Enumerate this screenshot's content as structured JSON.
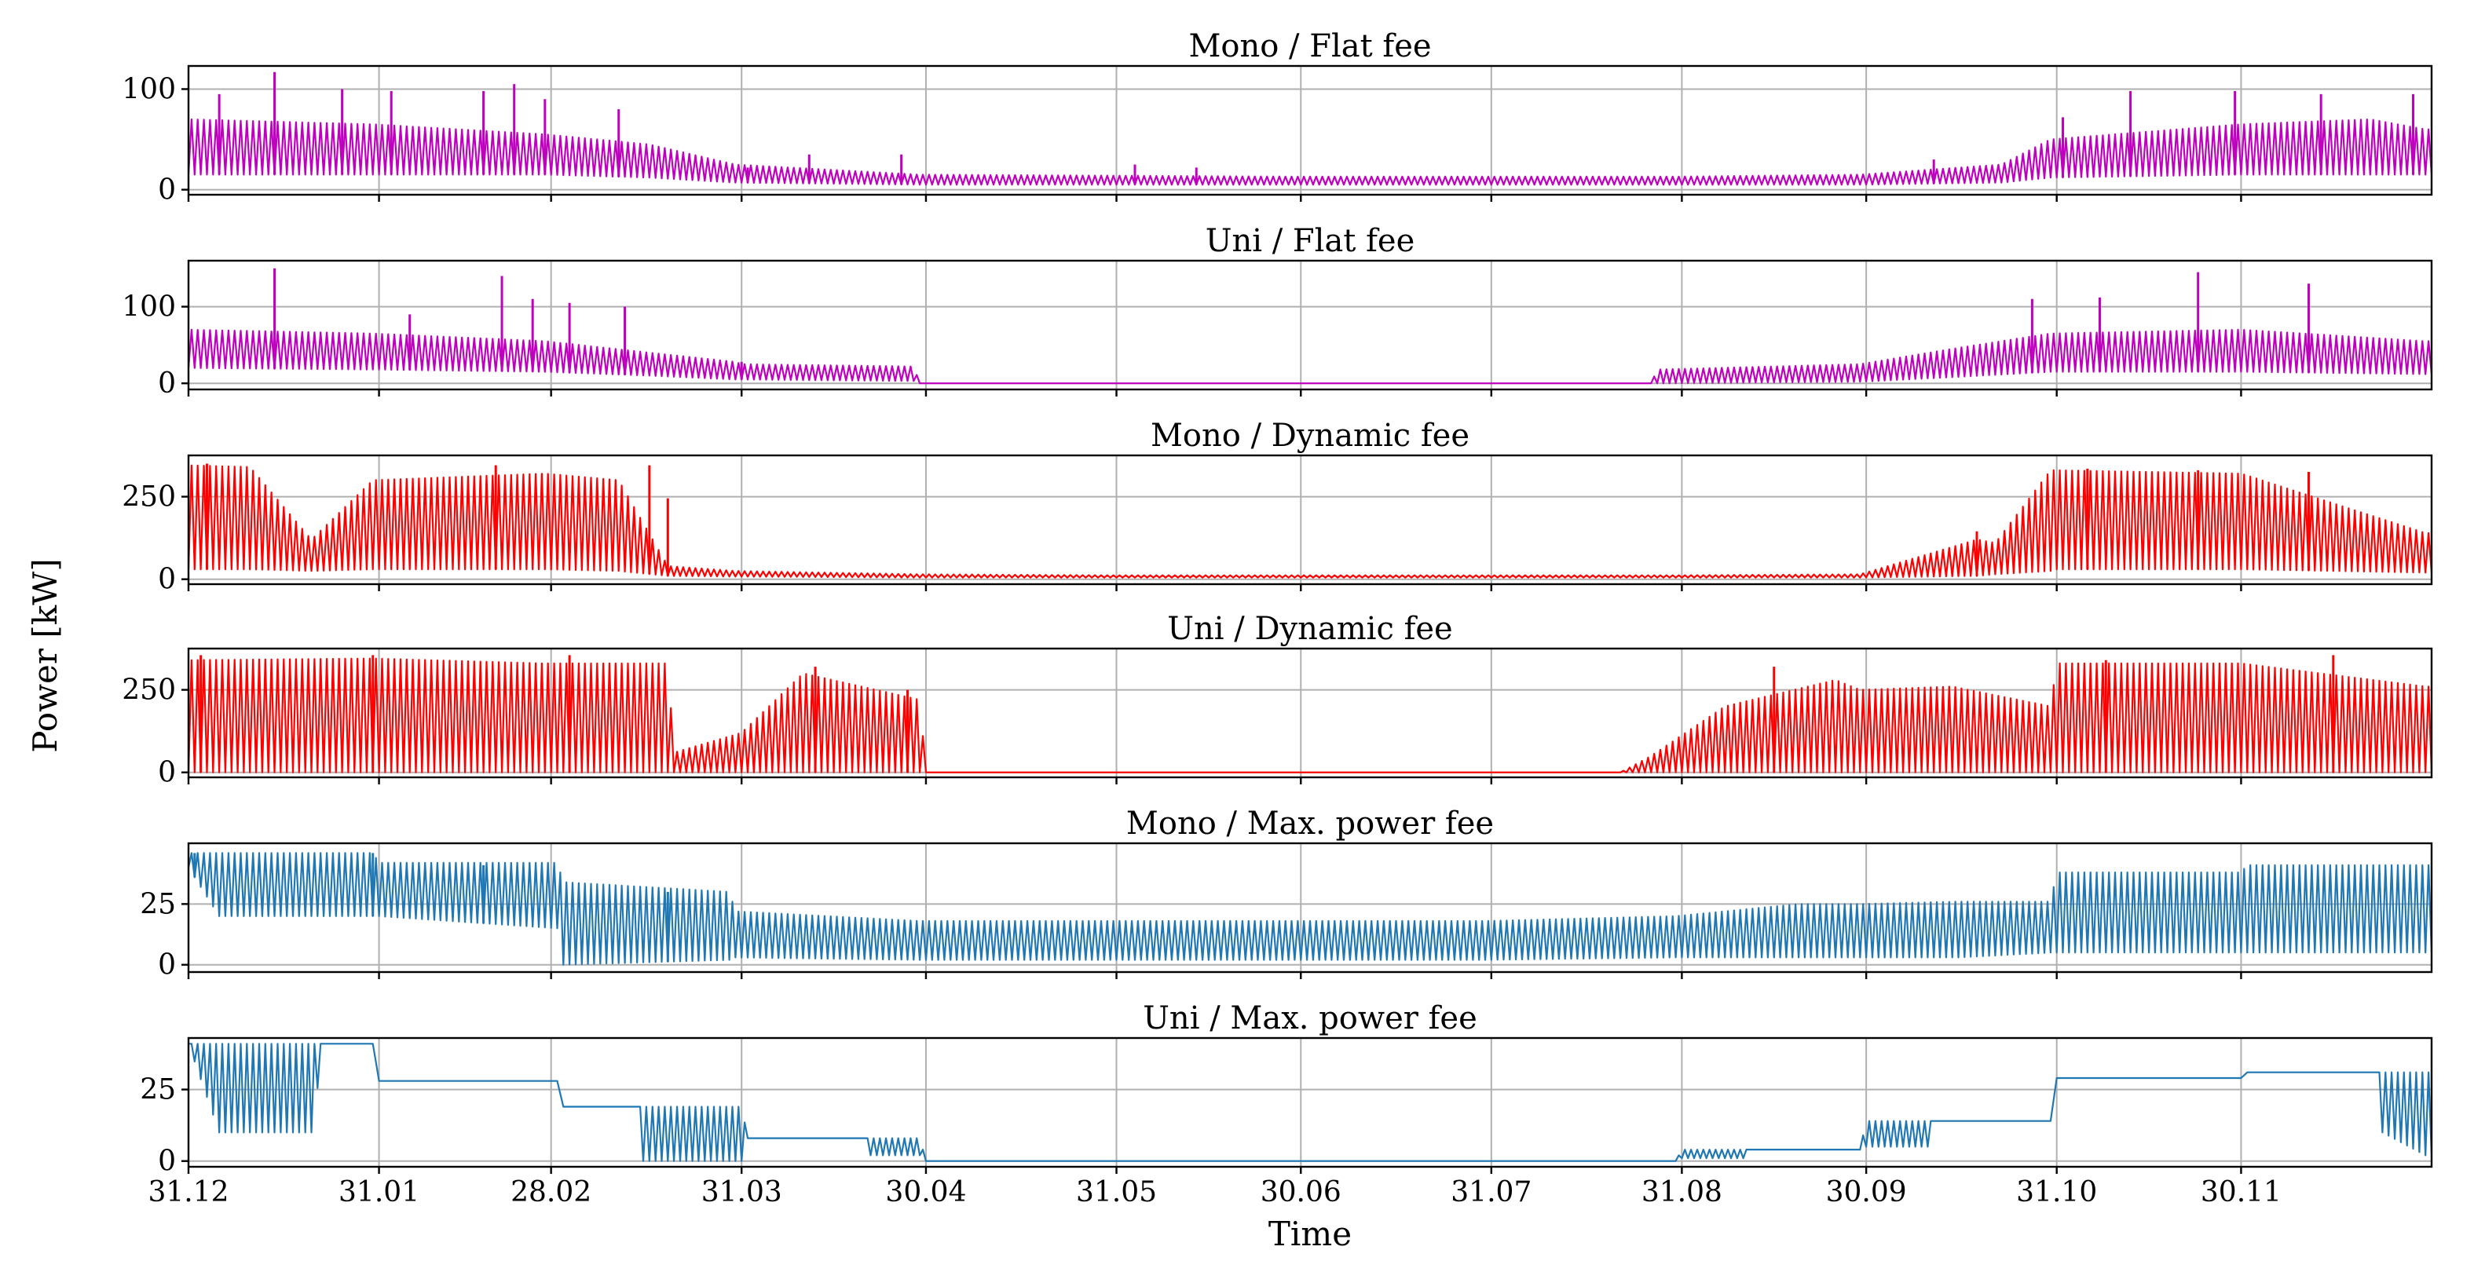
{
  "chart_data": [
    {
      "type": "line",
      "title": "Mono / Flat fee",
      "color": "#bf00bf",
      "yticks": [
        0,
        100
      ],
      "ylim": [
        -5,
        123
      ],
      "xlim": [
        0,
        365
      ],
      "series": [
        {
          "name": "Mono / Flat fee",
          "x": [
            0,
            30,
            58,
            75,
            89,
            119,
            150,
            180,
            211,
            242,
            272,
            295,
            303,
            334,
            355,
            364
          ],
          "base": [
            15,
            15,
            15,
            12,
            7,
            5,
            5,
            5,
            5,
            5,
            5,
            7,
            12,
            15,
            15,
            15
          ],
          "peak": [
            70,
            65,
            55,
            45,
            25,
            15,
            14,
            13,
            13,
            13,
            15,
            25,
            50,
            65,
            70,
            60
          ],
          "spikes": [
            [
              5,
              95
            ],
            [
              14,
              117
            ],
            [
              25,
              100
            ],
            [
              33,
              98
            ],
            [
              48,
              98
            ],
            [
              53,
              105
            ],
            [
              58,
              90
            ],
            [
              70,
              80
            ],
            [
              91,
              22
            ],
            [
              101,
              35
            ],
            [
              116,
              35
            ],
            [
              154,
              25
            ],
            [
              164,
              22
            ],
            [
              284,
              30
            ],
            [
              305,
              72
            ],
            [
              316,
              98
            ],
            [
              333,
              98
            ],
            [
              347,
              95
            ],
            [
              362,
              95
            ]
          ]
        }
      ]
    },
    {
      "type": "line",
      "title": "Uni / Flat fee",
      "color": "#bf00bf",
      "yticks": [
        0,
        100
      ],
      "ylim": [
        -8,
        160
      ],
      "xlim": [
        0,
        365
      ],
      "series": [
        {
          "name": "Uni / Flat fee",
          "x": [
            0,
            30,
            58,
            75,
            89,
            90,
            118,
            119,
            120,
            238,
            239,
            272,
            287,
            303,
            334,
            364
          ],
          "base": [
            20,
            18,
            15,
            10,
            5,
            5,
            3,
            0,
            0,
            0,
            0,
            2,
            8,
            15,
            15,
            12
          ],
          "peak": [
            70,
            65,
            55,
            40,
            28,
            25,
            22,
            0,
            0,
            0,
            18,
            25,
            45,
            65,
            70,
            55
          ],
          "spikes": [
            [
              14,
              150
            ],
            [
              36,
              90
            ],
            [
              51,
              140
            ],
            [
              56,
              110
            ],
            [
              62,
              105
            ],
            [
              71,
              100
            ],
            [
              90,
              28
            ],
            [
              300,
              110
            ],
            [
              311,
              112
            ],
            [
              327,
              145
            ],
            [
              345,
              130
            ]
          ]
        }
      ]
    },
    {
      "type": "line",
      "title": "Mono / Dynamic fee",
      "color": "#ff0000",
      "yticks": [
        0,
        250
      ],
      "ylim": [
        -15,
        375
      ],
      "xlim": [
        0,
        365
      ],
      "series": [
        {
          "name": "Mono / Dynamic fee",
          "x": [
            0,
            10,
            20,
            30,
            58,
            70,
            78,
            89,
            119,
            150,
            180,
            211,
            242,
            272,
            291,
            294,
            303,
            304,
            334,
            364
          ],
          "base": [
            30,
            30,
            25,
            30,
            30,
            25,
            10,
            8,
            5,
            5,
            5,
            5,
            5,
            5,
            10,
            15,
            25,
            30,
            30,
            20
          ],
          "peak": [
            345,
            340,
            120,
            300,
            320,
            300,
            40,
            25,
            15,
            12,
            12,
            12,
            12,
            15,
            120,
            110,
            330,
            330,
            320,
            140
          ],
          "spikes": [
            [
              3,
              350
            ],
            [
              50,
              345
            ],
            [
              75,
              345
            ],
            [
              78,
              245
            ],
            [
              291,
              145
            ],
            [
              309,
              335
            ],
            [
              327,
              330
            ],
            [
              345,
              325
            ]
          ]
        }
      ]
    },
    {
      "type": "line",
      "title": "Uni / Dynamic fee",
      "color": "#ff0000",
      "yticks": [
        0,
        250
      ],
      "ylim": [
        -15,
        375
      ],
      "xlim": [
        0,
        365
      ],
      "series": [
        {
          "name": "Uni / Dynamic fee",
          "x": [
            0,
            30,
            58,
            78,
            79,
            90,
            100,
            119,
            120,
            233,
            238,
            250,
            268,
            272,
            287,
            303,
            304,
            334,
            364
          ],
          "base": [
            0,
            0,
            0,
            0,
            0,
            0,
            0,
            0,
            0,
            0,
            0,
            0,
            0,
            0,
            0,
            0,
            0,
            0,
            0
          ],
          "peak": [
            340,
            345,
            330,
            330,
            60,
            120,
            300,
            220,
            0,
            0,
            50,
            200,
            280,
            250,
            260,
            200,
            330,
            330,
            260
          ],
          "spikes": [
            [
              2,
              355
            ],
            [
              30,
              355
            ],
            [
              62,
              355
            ],
            [
              102,
              320
            ],
            [
              117,
              250
            ],
            [
              129,
              0
            ],
            [
              258,
              320
            ],
            [
              312,
              340
            ],
            [
              349,
              355
            ]
          ]
        }
      ]
    },
    {
      "type": "line",
      "title": "Mono / Max. power fee",
      "color": "#1f77b4",
      "yticks": [
        0,
        25
      ],
      "ylim": [
        -3,
        50
      ],
      "xlim": [
        0,
        365
      ],
      "series": [
        {
          "name": "Mono / Max. power fee",
          "x": [
            0,
            5,
            30,
            31,
            60,
            61,
            88,
            89,
            119,
            150,
            180,
            211,
            242,
            262,
            272,
            288,
            303,
            304,
            334,
            335,
            364
          ],
          "base": [
            40,
            20,
            20,
            20,
            15,
            0,
            2,
            3,
            2,
            2,
            2,
            2,
            3,
            3,
            3,
            3,
            5,
            5,
            5,
            5,
            5
          ],
          "peak": [
            46,
            46,
            46,
            42,
            42,
            34,
            30,
            22,
            18,
            18,
            18,
            18,
            20,
            25,
            25,
            26,
            26,
            38,
            38,
            41,
            41
          ],
          "spikes": [
            [
              1,
              46
            ],
            [
              30,
              46
            ],
            [
              48,
              41
            ],
            [
              78,
              30
            ]
          ]
        }
      ]
    },
    {
      "type": "line",
      "title": "Uni / Max. power fee",
      "color": "#1f77b4",
      "yticks": [
        0,
        25
      ],
      "ylim": [
        -2,
        43
      ],
      "xlim": [
        0,
        365
      ],
      "series": [
        {
          "name": "Uni / Max. power fee",
          "x": [
            0,
            5,
            20,
            22,
            30,
            31,
            60,
            61,
            73,
            74,
            90,
            91,
            110,
            111,
            119,
            120,
            242,
            243,
            253,
            254,
            272,
            273,
            283,
            284,
            303,
            304,
            334,
            335,
            356,
            357,
            364
          ],
          "base": [
            41,
            10,
            10,
            41,
            41,
            28,
            28,
            19,
            19,
            0,
            0,
            8,
            8,
            2,
            2,
            0,
            0,
            1,
            1,
            4,
            4,
            5,
            5,
            14,
            14,
            29,
            29,
            31,
            31,
            10,
            2
          ],
          "peak": [
            41,
            41,
            41,
            41,
            41,
            28,
            28,
            19,
            19,
            19,
            19,
            8,
            8,
            8,
            8,
            0,
            0,
            4,
            4,
            4,
            4,
            14,
            14,
            14,
            14,
            29,
            29,
            31,
            31,
            31,
            31
          ],
          "spikes": []
        }
      ]
    }
  ],
  "shared": {
    "xtick_labels": [
      "31.12",
      "31.01",
      "28.02",
      "31.03",
      "30.04",
      "31.05",
      "30.06",
      "31.07",
      "31.08",
      "30.09",
      "31.10",
      "30.11"
    ],
    "xtick_days": [
      0,
      31,
      59,
      90,
      120,
      151,
      181,
      212,
      243,
      273,
      304,
      334
    ],
    "xlabel": "Time",
    "ylabel": "Power [kW]"
  }
}
